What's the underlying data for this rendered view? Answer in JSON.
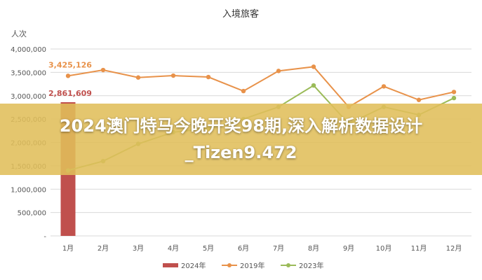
{
  "banner": {
    "text": "2024澳门特马今晚开奖98期,深入解析数据设计_Tizen9.472"
  },
  "chart_data": {
    "type": "line",
    "title": "入境旅客",
    "ylabel": "人次",
    "xlabel": "",
    "categories": [
      "1月",
      "2月",
      "3月",
      "4月",
      "5月",
      "6月",
      "7月",
      "8月",
      "9月",
      "10月",
      "11月",
      "12月"
    ],
    "ylim": [
      0,
      4000000
    ],
    "yticks": [
      0,
      500000,
      1000000,
      1500000,
      2000000,
      2500000,
      3000000,
      3500000,
      4000000
    ],
    "ytick_labels": [
      "-",
      "500,000",
      "1,000,000",
      "1,500,000",
      "2,000,000",
      "2,500,000",
      "3,000,000",
      "3,500,000",
      "4,000,000"
    ],
    "grid": true,
    "legend_position": "bottom",
    "series": [
      {
        "name": "2024年",
        "type": "bar",
        "color": "#c0504d",
        "values": [
          2861609,
          null,
          null,
          null,
          null,
          null,
          null,
          null,
          null,
          null,
          null,
          null
        ],
        "labels": [
          "2,861,609"
        ]
      },
      {
        "name": "2019年",
        "type": "line",
        "color": "#e8924a",
        "values": [
          3425126,
          3550000,
          3390000,
          3430000,
          3400000,
          3100000,
          3530000,
          3620000,
          2760000,
          3200000,
          2910000,
          3080000
        ],
        "labels": [
          "3,425,126"
        ]
      },
      {
        "name": "2023年",
        "type": "line",
        "color": "#9bbb59",
        "values": [
          1400000,
          1600000,
          1970000,
          2220000,
          2300000,
          2500000,
          2760000,
          3220000,
          2400000,
          2760000,
          2590000,
          2950000
        ]
      }
    ]
  }
}
